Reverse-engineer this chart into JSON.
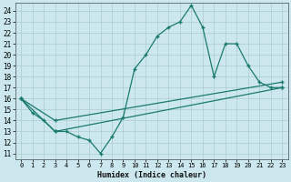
{
  "xlabel": "Humidex (Indice chaleur)",
  "bg_color": "#cce8ee",
  "grid_color": "#aacccc",
  "line_color": "#1a7a6e",
  "xlim": [
    -0.5,
    23.5
  ],
  "ylim": [
    10.5,
    24.7
  ],
  "yticks": [
    11,
    12,
    13,
    14,
    15,
    16,
    17,
    18,
    19,
    20,
    21,
    22,
    23,
    24
  ],
  "xticks": [
    0,
    1,
    2,
    3,
    4,
    5,
    6,
    7,
    8,
    9,
    10,
    11,
    12,
    13,
    14,
    15,
    16,
    17,
    18,
    19,
    20,
    21,
    22,
    23
  ],
  "line1_x": [
    0,
    1,
    2,
    3,
    4,
    5,
    6,
    7,
    8,
    9,
    10,
    11,
    12,
    13,
    14,
    15,
    16,
    17,
    18,
    19,
    20,
    21,
    22,
    23
  ],
  "line1_y": [
    16.0,
    14.7,
    14.0,
    13.0,
    13.0,
    12.5,
    12.2,
    11.0,
    12.5,
    14.3,
    18.7,
    20.0,
    21.7,
    22.5,
    23.0,
    24.5,
    22.5,
    18.0,
    21.0,
    21.0,
    19.0,
    17.5,
    17.0,
    17.0
  ],
  "line2_x": [
    0,
    3,
    23
  ],
  "line2_y": [
    16.0,
    13.0,
    17.0
  ],
  "line3_x": [
    0,
    3,
    23
  ],
  "line3_y": [
    16.0,
    14.0,
    17.5
  ]
}
